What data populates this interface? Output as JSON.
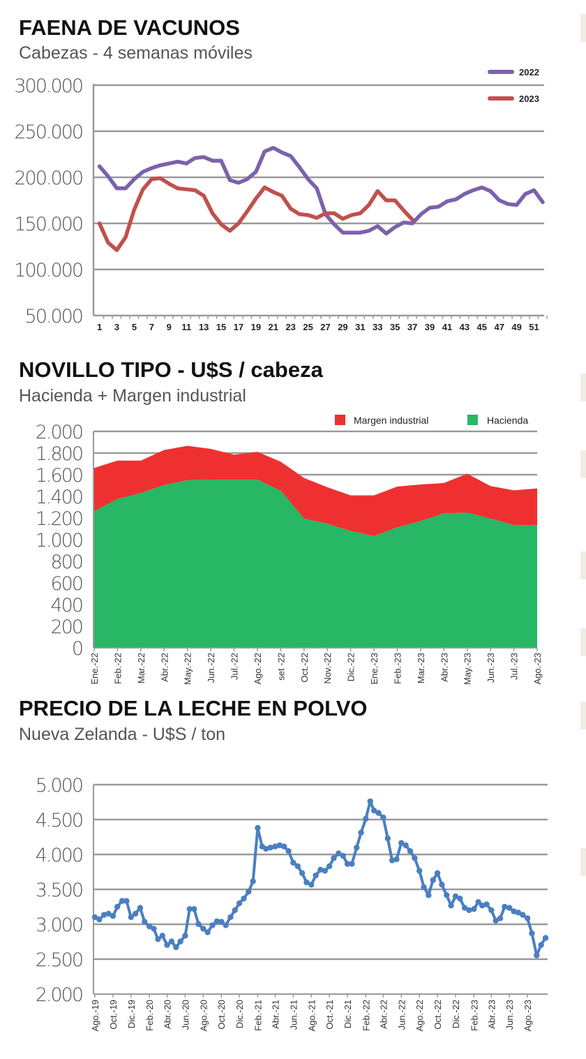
{
  "charts_meta": {
    "decor_color": "#f1ede2"
  },
  "chart_data": [
    {
      "type": "line",
      "title": "FAENA DE VACUNOS",
      "subtitle": "Cabezas - 4 semanas móviles",
      "xlabel": "",
      "ylabel": "",
      "ylim": [
        50000,
        300000
      ],
      "xlim": [
        1,
        52
      ],
      "grid": true,
      "legend_position": "top-right",
      "y_tick_values": [
        300000,
        250000,
        200000,
        150000,
        100000,
        50000
      ],
      "y_tick_labels": [
        "300.000",
        "250.000",
        "200.000",
        "150.000",
        "100.000",
        "50.000"
      ],
      "x_tick_labels": [
        "1",
        "3",
        "5",
        "7",
        "9",
        "11",
        "13",
        "15",
        "17",
        "19",
        "21",
        "23",
        "25",
        "27",
        "29",
        "31",
        "33",
        "35",
        "37",
        "39",
        "41",
        "43",
        "45",
        "47",
        "49",
        "51"
      ],
      "series": [
        {
          "name": "2022",
          "color": "#7b62ab",
          "x": [
            1,
            2,
            3,
            4,
            5,
            6,
            7,
            8,
            9,
            10,
            11,
            12,
            13,
            14,
            15,
            16,
            17,
            18,
            19,
            20,
            21,
            22,
            23,
            24,
            25,
            26,
            27,
            28,
            29,
            30,
            31,
            32,
            33,
            34,
            35,
            36,
            37,
            38,
            39,
            40,
            41,
            42,
            43,
            44,
            45,
            46,
            47,
            48,
            49,
            50,
            51,
            52
          ],
          "values": [
            212000,
            201000,
            188000,
            188000,
            198000,
            206000,
            210000,
            213000,
            215000,
            217000,
            215000,
            221000,
            222000,
            218000,
            218000,
            197000,
            194000,
            198000,
            206000,
            228000,
            232000,
            227000,
            223000,
            211000,
            198000,
            188000,
            160000,
            149000,
            140000,
            140000,
            140000,
            142000,
            147000,
            139000,
            146000,
            151000,
            150000,
            160000,
            167000,
            168000,
            174000,
            176000,
            182000,
            186000,
            189000,
            185000,
            175000,
            171000,
            170000,
            182000,
            186000,
            173000
          ]
        },
        {
          "name": "2023",
          "color": "#c0504d",
          "x": [
            1,
            2,
            3,
            4,
            5,
            6,
            7,
            8,
            9,
            10,
            11,
            12,
            13,
            14,
            15,
            16,
            17,
            18,
            19,
            20,
            21,
            22,
            23,
            24,
            25,
            26,
            27,
            28,
            29,
            30,
            31,
            32,
            33,
            34,
            35,
            36,
            37
          ],
          "values": [
            150000,
            129000,
            121000,
            135000,
            165000,
            187000,
            198000,
            199000,
            193000,
            188000,
            187000,
            186000,
            180000,
            161000,
            149000,
            142000,
            150000,
            163000,
            177000,
            189000,
            184000,
            180000,
            166000,
            160000,
            159000,
            156000,
            161000,
            161000,
            155000,
            159000,
            161000,
            170000,
            185000,
            175000,
            175000,
            164000,
            154000
          ]
        }
      ]
    },
    {
      "type": "area",
      "stacked": true,
      "title": "NOVILLO TIPO - U$S / cabeza",
      "subtitle": "Hacienda + Margen industrial",
      "xlabel": "",
      "ylabel": "",
      "ylim": [
        0,
        2000
      ],
      "grid": true,
      "legend_position": "top-right",
      "y_tick_values": [
        2000,
        1800,
        1600,
        1400,
        1200,
        1000,
        800,
        600,
        400,
        200,
        0
      ],
      "y_tick_labels": [
        "2.000",
        "1.800",
        "1.600",
        "1.400",
        "1.200",
        "1.000",
        "800",
        "600",
        "400",
        "200",
        "0"
      ],
      "categories": [
        "Ene.-22",
        "Feb.-22",
        "Mar.-22",
        "Abr.-22",
        "May.-22",
        "Jun.-22",
        "Jul.-22",
        "Ago.-22",
        "set -22",
        "Oct.-22",
        "Nov.-22",
        "Dic.-22",
        "Ene.-23",
        "Feb.-23",
        "Mar.-23",
        "Abr.-23",
        "May.-23",
        "Jun.-23",
        "Jul.-23",
        "Ago.-23"
      ],
      "legend": [
        "Margen industrial",
        "Hacienda"
      ],
      "series": [
        {
          "name": "Hacienda",
          "color": "#27b765",
          "values": [
            1262,
            1376,
            1430,
            1505,
            1548,
            1555,
            1553,
            1553,
            1452,
            1194,
            1146,
            1080,
            1032,
            1114,
            1172,
            1243,
            1249,
            1194,
            1135,
            1133
          ]
        },
        {
          "name": "Margen industrial",
          "color": "#ee3130",
          "values": [
            400,
            355,
            300,
            323,
            319,
            284,
            232,
            258,
            268,
            376,
            338,
            329,
            377,
            376,
            338,
            280,
            360,
            301,
            321,
            340
          ]
        }
      ]
    },
    {
      "type": "line",
      "title": "PRECIO DE LA LECHE EN POLVO",
      "subtitle": "Nueva Zelanda - U$S / ton",
      "xlabel": "",
      "ylabel": "",
      "ylim": [
        2000,
        5000
      ],
      "grid": true,
      "markers": true,
      "y_tick_values": [
        5000,
        4500,
        4000,
        3500,
        3000,
        2500,
        2000
      ],
      "y_tick_labels": [
        "5.000",
        "4.500",
        "4.000",
        "3.500",
        "3.000",
        "2.500",
        "2.000"
      ],
      "x_tick_dates": [
        "2019-08-01",
        "2019-10-01",
        "2019-12-01",
        "2020-02-01",
        "2020-04-01",
        "2020-06-01",
        "2020-08-01",
        "2020-10-01",
        "2020-12-01",
        "2021-02-01",
        "2021-04-01",
        "2021-06-01",
        "2021-08-01",
        "2021-10-01",
        "2021-12-01",
        "2022-02-01",
        "2022-04-01",
        "2022-06-01",
        "2022-08-01",
        "2022-10-01",
        "2022-12-01",
        "2023-02-01",
        "2023-04-01",
        "2023-06-01",
        "2023-08-01"
      ],
      "x_tick_labels": [
        "Ago.-19",
        "Oct.-19",
        "Dic.-19",
        "Feb.-20",
        "Abr.-20",
        "Jun.-20",
        "Ago.-20",
        "Oct.-20",
        "Dic.-20",
        "Feb.-21",
        "Abr.-21",
        "Jun.-21",
        "Ago.-21",
        "Oct.-21",
        "Dic.-21",
        "Feb.-22",
        "Abr.-22",
        "Jun.-22",
        "Ago.-22",
        "Oct.-22",
        "Dic.-22",
        "Feb.-23",
        "Abr.-23",
        "Jun.-23",
        "Ago.-23"
      ],
      "series": [
        {
          "color": "#4a7fc1",
          "x": [
            "2019-08-01",
            "2019-08-16",
            "2019-09-01",
            "2019-09-16",
            "2019-10-01",
            "2019-10-16",
            "2019-11-01",
            "2019-11-16",
            "2019-12-01",
            "2019-12-16",
            "2020-01-01",
            "2020-01-16",
            "2020-02-01",
            "2020-02-16",
            "2020-03-01",
            "2020-03-16",
            "2020-04-01",
            "2020-04-16",
            "2020-05-01",
            "2020-05-16",
            "2020-06-01",
            "2020-06-16",
            "2020-07-01",
            "2020-07-16",
            "2020-08-01",
            "2020-08-16",
            "2020-09-01",
            "2020-09-16",
            "2020-10-01",
            "2020-10-16",
            "2020-11-01",
            "2020-11-16",
            "2020-12-01",
            "2020-12-16",
            "2021-01-01",
            "2021-01-16",
            "2021-02-01",
            "2021-02-16",
            "2021-03-01",
            "2021-03-16",
            "2021-04-01",
            "2021-04-16",
            "2021-05-01",
            "2021-05-16",
            "2021-06-01",
            "2021-06-16",
            "2021-07-01",
            "2021-07-16",
            "2021-08-01",
            "2021-08-16",
            "2021-09-01",
            "2021-09-16",
            "2021-10-01",
            "2021-10-16",
            "2021-11-01",
            "2021-11-16",
            "2021-12-01",
            "2021-12-16",
            "2022-01-01",
            "2022-01-16",
            "2022-02-01",
            "2022-02-16",
            "2022-03-01",
            "2022-03-16",
            "2022-04-01",
            "2022-04-16",
            "2022-05-01",
            "2022-05-16",
            "2022-06-01",
            "2022-06-16",
            "2022-07-01",
            "2022-07-16",
            "2022-08-01",
            "2022-08-16",
            "2022-09-01",
            "2022-09-16",
            "2022-10-01",
            "2022-10-16",
            "2022-11-01",
            "2022-11-16",
            "2022-12-01",
            "2022-12-16",
            "2023-01-01",
            "2023-01-16",
            "2023-02-01",
            "2023-02-16",
            "2023-03-01",
            "2023-03-16",
            "2023-04-01",
            "2023-04-16",
            "2023-05-01",
            "2023-05-16",
            "2023-06-01",
            "2023-06-16",
            "2023-07-01",
            "2023-07-16",
            "2023-08-01",
            "2023-08-16",
            "2023-09-01",
            "2023-09-16",
            "2023-10-01"
          ],
          "values": [
            3102,
            3069,
            3135,
            3152,
            3119,
            3251,
            3334,
            3334,
            3102,
            3152,
            3235,
            3036,
            2970,
            2936,
            2787,
            2837,
            2704,
            2754,
            2671,
            2754,
            2837,
            3218,
            3218,
            3003,
            2936,
            2886,
            2986,
            3042,
            3036,
            2986,
            3102,
            3202,
            3301,
            3368,
            3467,
            3616,
            4380,
            4114,
            4081,
            4098,
            4114,
            4131,
            4114,
            4048,
            3882,
            3832,
            3733,
            3600,
            3567,
            3699,
            3782,
            3766,
            3832,
            3948,
            4015,
            3981,
            3865,
            3865,
            4098,
            4313,
            4512,
            4761,
            4628,
            4595,
            4529,
            4230,
            3915,
            3932,
            4164,
            4131,
            4048,
            3948,
            3766,
            3533,
            3417,
            3633,
            3733,
            3567,
            3417,
            3268,
            3401,
            3368,
            3235,
            3202,
            3218,
            3318,
            3268,
            3285,
            3202,
            3052,
            3086,
            3251,
            3235,
            3185,
            3168,
            3135,
            3086,
            2870,
            2555,
            2704,
            2804
          ]
        }
      ]
    }
  ]
}
